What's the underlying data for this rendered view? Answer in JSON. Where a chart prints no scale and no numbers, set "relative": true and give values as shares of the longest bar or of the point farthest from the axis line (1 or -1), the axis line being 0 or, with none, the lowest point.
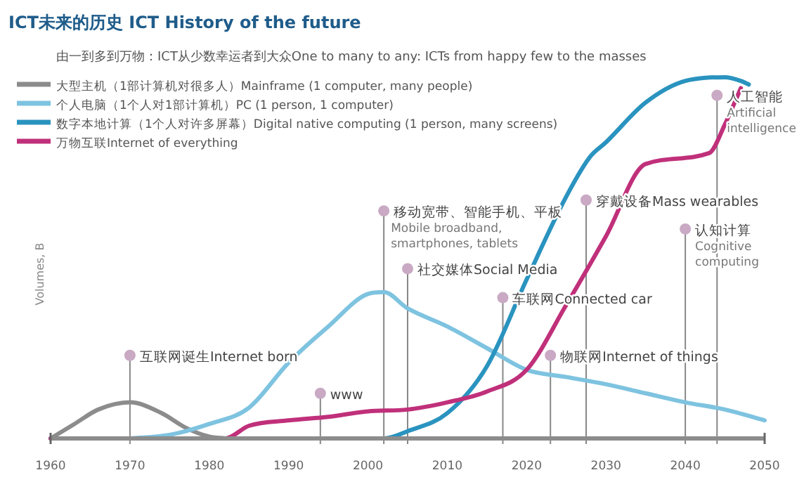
{
  "chart_data": {
    "type": "line",
    "title": "ICT未来的历史 ICT History of the future",
    "subtitle": "由一到多到万物：ICT从少数幸运者到大众One to many to any:  ICTs from happy few to the masses",
    "ylabel": "Volumes, B",
    "relative": true,
    "xlim": [
      1960,
      2050
    ],
    "xticks": [
      1960,
      1970,
      1980,
      1990,
      2000,
      2010,
      2020,
      2030,
      2040,
      2050
    ],
    "tick_labels": "x",
    "legend": "top left",
    "grid": false,
    "line_style": "solid",
    "series": [
      {
        "name": "大型主机（1部计算机对很多人）Mainframe (1 computer, many people)",
        "color": "#8c8c8c",
        "x": [
          1960,
          1963,
          1966,
          1970,
          1974,
          1977,
          1980,
          1982
        ],
        "values": [
          0,
          0.04,
          0.08,
          0.1,
          0.07,
          0.03,
          0.005,
          0
        ]
      },
      {
        "name": "个人电脑（1个人对1部计算机）PC (1 person, 1 computer)",
        "color": "#7ec3e0",
        "x": [
          1970,
          1975,
          1980,
          1985,
          1990,
          1995,
          2000,
          2002,
          2005,
          2010,
          2015,
          2020,
          2025,
          2030,
          2035,
          2040,
          2045,
          2050
        ],
        "values": [
          0,
          0.01,
          0.04,
          0.085,
          0.21,
          0.31,
          0.4,
          0.405,
          0.36,
          0.31,
          0.25,
          0.19,
          0.17,
          0.15,
          0.125,
          0.1,
          0.08,
          0.05
        ]
      },
      {
        "name": "数字本地计算（1个人对许多屏幕）Digital native computing (1 person, many screens)",
        "color": "#2a93bf",
        "x": [
          1960,
          2002,
          2005,
          2010,
          2015,
          2020,
          2025,
          2028,
          2030,
          2035,
          2040,
          2045,
          2047,
          2048
        ],
        "values": [
          0,
          0,
          0.02,
          0.07,
          0.2,
          0.44,
          0.67,
          0.78,
          0.82,
          0.93,
          0.99,
          1,
          0.99,
          0.98
        ]
      },
      {
        "name": "万物互联Internet of everything",
        "color": "#c0307a",
        "x": [
          1960,
          1982,
          1985,
          1990,
          1995,
          2000,
          2005,
          2010,
          2015,
          2020,
          2025,
          2030,
          2035,
          2043,
          2045,
          2047
        ],
        "values": [
          0,
          0,
          0.035,
          0.05,
          0.06,
          0.075,
          0.08,
          0.1,
          0.13,
          0.19,
          0.37,
          0.56,
          0.76,
          0.79,
          0.87,
          0.97
        ]
      }
    ],
    "ref_lines": [
      {
        "axis": "x",
        "value": 1970
      },
      {
        "axis": "x",
        "value": 1994
      },
      {
        "axis": "x",
        "value": 2002
      },
      {
        "axis": "x",
        "value": 2005
      },
      {
        "axis": "x",
        "value": 2017
      },
      {
        "axis": "x",
        "value": 2023
      },
      {
        "axis": "x",
        "value": 2027.5
      },
      {
        "axis": "x",
        "value": 2040
      },
      {
        "axis": "x",
        "value": 2044
      }
    ],
    "annotations": [
      {
        "text": "互联网诞生Internet born",
        "x": 1970,
        "y": 0.23
      },
      {
        "text": "www",
        "x": 1994,
        "y": 0.125
      },
      {
        "text": "移动宽带、智能手机、平板\nMobile broadband,\nsmartphones, tablets",
        "x": 2002,
        "y": 0.63
      },
      {
        "text": "社交媒体Social Media",
        "x": 2005,
        "y": 0.47
      },
      {
        "text": "车联网Connected car",
        "x": 2017,
        "y": 0.39
      },
      {
        "text": "物联网Internet of things",
        "x": 2023,
        "y": 0.23
      },
      {
        "text": "穿戴设备Mass wearables",
        "x": 2027.5,
        "y": 0.66
      },
      {
        "text": "认知计算\nCognitive\ncomputing",
        "x": 2040,
        "y": 0.58
      },
      {
        "text": "人工智能\nArtificial\nintelligence",
        "x": 2044,
        "y": 0.95
      }
    ]
  }
}
